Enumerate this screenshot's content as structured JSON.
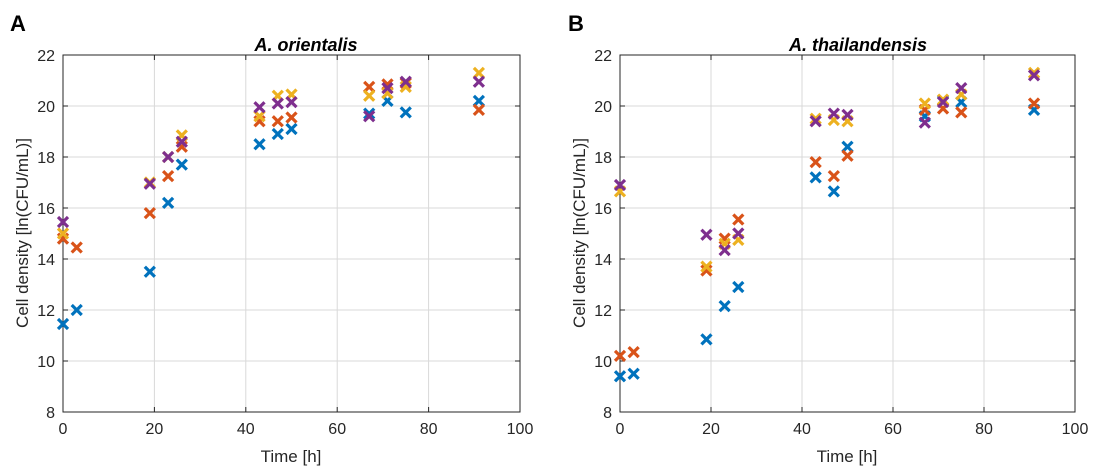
{
  "figure": {
    "panels": [
      {
        "letter": "A",
        "title": "A. orientalis",
        "xlabel": "Time [h]",
        "ylabel": "Cell density [ln(CFU/mL)]"
      },
      {
        "letter": "B",
        "title": "A. thailandensis",
        "xlabel": "Time [h]",
        "ylabel": "Cell density [ln(CFU/mL)]"
      }
    ]
  },
  "colors": {
    "blue": "#0072BD",
    "orange": "#D95319",
    "yellow": "#EDB120",
    "purple": "#7E2F8E",
    "grid": "#d9d9d9",
    "axis": "#262626"
  },
  "chart_data": [
    {
      "type": "scatter",
      "title": "A. orientalis",
      "xlabel": "Time [h]",
      "ylabel": "Cell density [ln(CFU/mL)]",
      "xlim": [
        0,
        100
      ],
      "ylim": [
        8,
        22
      ],
      "xticks": [
        0,
        20,
        40,
        60,
        80,
        100
      ],
      "yticks": [
        8,
        10,
        12,
        14,
        16,
        18,
        20,
        22
      ],
      "grid": true,
      "marker": "x",
      "series": [
        {
          "color": "#0072BD",
          "x": [
            0,
            3,
            19,
            23,
            26,
            43,
            47,
            50,
            67,
            71,
            75,
            91
          ],
          "y": [
            11.45,
            12.0,
            13.5,
            16.2,
            17.7,
            18.5,
            18.9,
            19.1,
            19.7,
            20.2,
            19.75,
            20.2
          ]
        },
        {
          "color": "#D95319",
          "x": [
            0,
            3,
            19,
            23,
            26,
            43,
            47,
            50,
            67,
            71,
            75,
            91
          ],
          "y": [
            14.8,
            14.45,
            15.8,
            17.25,
            18.4,
            19.4,
            19.4,
            19.55,
            20.75,
            20.85,
            20.9,
            19.85
          ]
        },
        {
          "color": "#EDB120",
          "x": [
            0,
            19,
            23,
            26,
            43,
            47,
            50,
            67,
            71,
            75,
            91
          ],
          "y": [
            15.0,
            17.0,
            18.0,
            18.85,
            19.6,
            20.4,
            20.45,
            20.4,
            20.5,
            20.75,
            21.3
          ]
        },
        {
          "color": "#7E2F8E",
          "x": [
            0,
            19,
            23,
            26,
            43,
            47,
            50,
            67,
            71,
            75,
            91
          ],
          "y": [
            15.45,
            16.95,
            18.0,
            18.6,
            19.95,
            20.1,
            20.15,
            19.6,
            20.7,
            20.95,
            20.95
          ]
        }
      ]
    },
    {
      "type": "scatter",
      "title": "A. thailandensis",
      "xlabel": "Time [h]",
      "ylabel": "Cell density [ln(CFU/mL)]",
      "xlim": [
        0,
        100
      ],
      "ylim": [
        8,
        22
      ],
      "xticks": [
        0,
        20,
        40,
        60,
        80,
        100
      ],
      "yticks": [
        8,
        10,
        12,
        14,
        16,
        18,
        20,
        22
      ],
      "grid": true,
      "marker": "x",
      "series": [
        {
          "color": "#0072BD",
          "x": [
            0,
            3,
            19,
            23,
            26,
            43,
            47,
            50,
            67,
            71,
            75,
            91
          ],
          "y": [
            9.4,
            9.5,
            10.85,
            12.15,
            12.9,
            17.2,
            16.65,
            18.4,
            19.6,
            20.2,
            20.15,
            19.85
          ]
        },
        {
          "color": "#D95319",
          "x": [
            0,
            3,
            19,
            23,
            26,
            43,
            47,
            50,
            67,
            71,
            75,
            91
          ],
          "y": [
            10.2,
            10.35,
            13.55,
            14.8,
            15.55,
            17.8,
            17.25,
            18.05,
            19.85,
            19.9,
            19.75,
            20.1
          ]
        },
        {
          "color": "#EDB120",
          "x": [
            0,
            19,
            23,
            26,
            43,
            47,
            50,
            67,
            71,
            75,
            91
          ],
          "y": [
            16.65,
            13.7,
            14.6,
            14.75,
            19.5,
            19.45,
            19.4,
            20.1,
            20.25,
            20.45,
            21.3
          ]
        },
        {
          "color": "#7E2F8E",
          "x": [
            0,
            19,
            23,
            26,
            43,
            47,
            50,
            67,
            71,
            75,
            91
          ],
          "y": [
            16.9,
            14.95,
            14.35,
            15.0,
            19.4,
            19.7,
            19.65,
            19.35,
            20.15,
            20.7,
            21.2
          ]
        }
      ]
    }
  ]
}
